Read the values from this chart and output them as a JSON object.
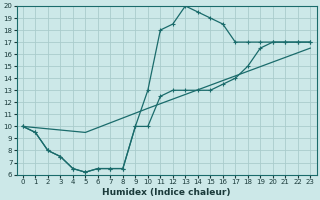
{
  "xlabel": "Humidex (Indice chaleur)",
  "bg_color": "#cce8e8",
  "grid_color": "#aacccc",
  "line_color": "#1a6b6b",
  "xlim": [
    -0.5,
    23.5
  ],
  "ylim": [
    6,
    20
  ],
  "xtick_labels": [
    "0",
    "1",
    "2",
    "3",
    "4",
    "5",
    "6",
    "7",
    "8",
    "9",
    "10",
    "11",
    "12",
    "13",
    "14",
    "15",
    "16",
    "17",
    "18",
    "19",
    "20",
    "21",
    "22",
    "23"
  ],
  "xticks": [
    0,
    1,
    2,
    3,
    4,
    5,
    6,
    7,
    8,
    9,
    10,
    11,
    12,
    13,
    14,
    15,
    16,
    17,
    18,
    19,
    20,
    21,
    22,
    23
  ],
  "yticks": [
    6,
    7,
    8,
    9,
    10,
    11,
    12,
    13,
    14,
    15,
    16,
    17,
    18,
    19,
    20
  ],
  "series1_x": [
    0,
    1,
    2,
    3,
    4,
    5,
    6,
    7,
    8,
    9,
    10,
    11,
    12,
    13,
    14,
    15,
    16,
    17,
    18,
    19,
    20,
    21,
    22,
    23
  ],
  "series1_y": [
    10,
    9.5,
    8.0,
    7.5,
    6.5,
    6.2,
    6.5,
    6.5,
    6.5,
    10.0,
    10.0,
    12.5,
    13.0,
    13.0,
    13.0,
    13.0,
    13.5,
    14.0,
    15.0,
    16.5,
    17.0,
    17.0,
    17.0,
    17.0
  ],
  "series2_x": [
    0,
    1,
    2,
    3,
    4,
    5,
    6,
    7,
    8,
    9,
    10,
    11,
    12,
    13,
    14,
    15,
    16,
    17,
    18,
    19,
    20,
    21,
    22,
    23
  ],
  "series2_y": [
    10,
    9.5,
    8.0,
    7.5,
    6.5,
    6.2,
    6.5,
    6.5,
    6.5,
    10.0,
    13.0,
    18.0,
    18.5,
    20.0,
    19.5,
    19.0,
    18.5,
    17.0,
    17.0,
    17.0,
    17.0,
    17.0,
    17.0,
    17.0
  ],
  "series3_x": [
    0,
    5,
    10,
    23
  ],
  "series3_y": [
    10,
    9.5,
    11.5,
    16.5
  ]
}
